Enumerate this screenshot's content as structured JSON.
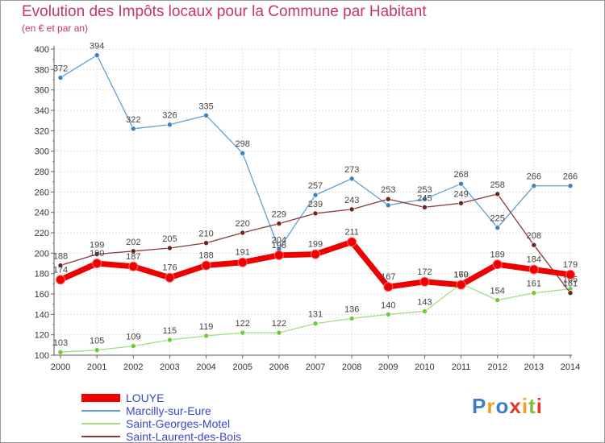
{
  "header": {
    "title": "Evolution des Impôts locaux pour la Commune par Habitant",
    "subtitle": "(en € et par an)"
  },
  "colors": {
    "title": "#c8365c",
    "legend_text": "#3b46c8",
    "axis_text": "#333333",
    "grid": "#e0e0e0"
  },
  "logo": {
    "chars": [
      "P",
      "r",
      "o",
      "x",
      "i",
      "t",
      "i"
    ]
  },
  "chart_data": {
    "type": "line",
    "title": "Evolution des Impôts locaux pour la Commune par Habitant",
    "subtitle": "(en € et par an)",
    "xlabel": "",
    "ylabel": "",
    "ylim": [
      100,
      400
    ],
    "y_ticks": [
      100,
      120,
      140,
      160,
      180,
      200,
      220,
      240,
      260,
      280,
      300,
      320,
      340,
      360,
      380,
      400
    ],
    "grid": true,
    "legend_position": "bottom-left",
    "x": [
      "2000",
      "2001",
      "2002",
      "2003",
      "2004",
      "2005",
      "2006",
      "2007",
      "2008",
      "2009",
      "2010",
      "2011",
      "2012",
      "2013",
      "2014"
    ],
    "series": [
      {
        "name": "Marcilly-sur-Eure",
        "color": "#5fa0d4",
        "marker": "#3e82c0",
        "values": [
          372,
          394,
          322,
          326,
          335,
          298,
          204,
          257,
          273,
          247,
          253,
          268,
          225,
          266,
          266
        ],
        "labels": [
          "372",
          "394",
          "322",
          "326",
          "335",
          "298",
          "204",
          "257",
          "273",
          "",
          "253",
          "268",
          "225",
          "266",
          "266"
        ]
      },
      {
        "name": "Saint-Georges-Motel",
        "color": "#a6dc7c",
        "marker": "#70c83a",
        "values": [
          103,
          105,
          109,
          115,
          119,
          122,
          122,
          131,
          136,
          140,
          143,
          170,
          154,
          161,
          165
        ],
        "labels": [
          "103",
          "105",
          "109",
          "115",
          "119",
          "122",
          "122",
          "131",
          "136",
          "140",
          "143",
          "170",
          "154",
          "161",
          "165"
        ]
      },
      {
        "name": "Saint-Laurent-des-Bois",
        "color": "#8a3a3a",
        "marker": "#6e2424",
        "values": [
          188,
          199,
          202,
          205,
          210,
          220,
          229,
          239,
          243,
          253,
          245,
          249,
          258,
          208,
          161
        ],
        "labels": [
          "188",
          "199",
          "202",
          "205",
          "210",
          "220",
          "229",
          "239",
          "243",
          "253",
          "245",
          "249",
          "258",
          "208",
          "161"
        ]
      },
      {
        "name": "LOUYE",
        "color": "#ee0000",
        "marker": "#ee0000",
        "values": [
          174,
          190,
          187,
          176,
          188,
          191,
          198,
          199,
          211,
          167,
          172,
          169,
          189,
          184,
          179
        ],
        "labels": [
          "174",
          "190",
          "187",
          "176",
          "188",
          "191",
          "198",
          "199",
          "211",
          "167",
          "172",
          "169",
          "189",
          "184",
          "179"
        ]
      }
    ],
    "legend": [
      "LOUYE",
      "Marcilly-sur-Eure",
      "Saint-Georges-Motel",
      "Saint-Laurent-des-Bois"
    ]
  }
}
